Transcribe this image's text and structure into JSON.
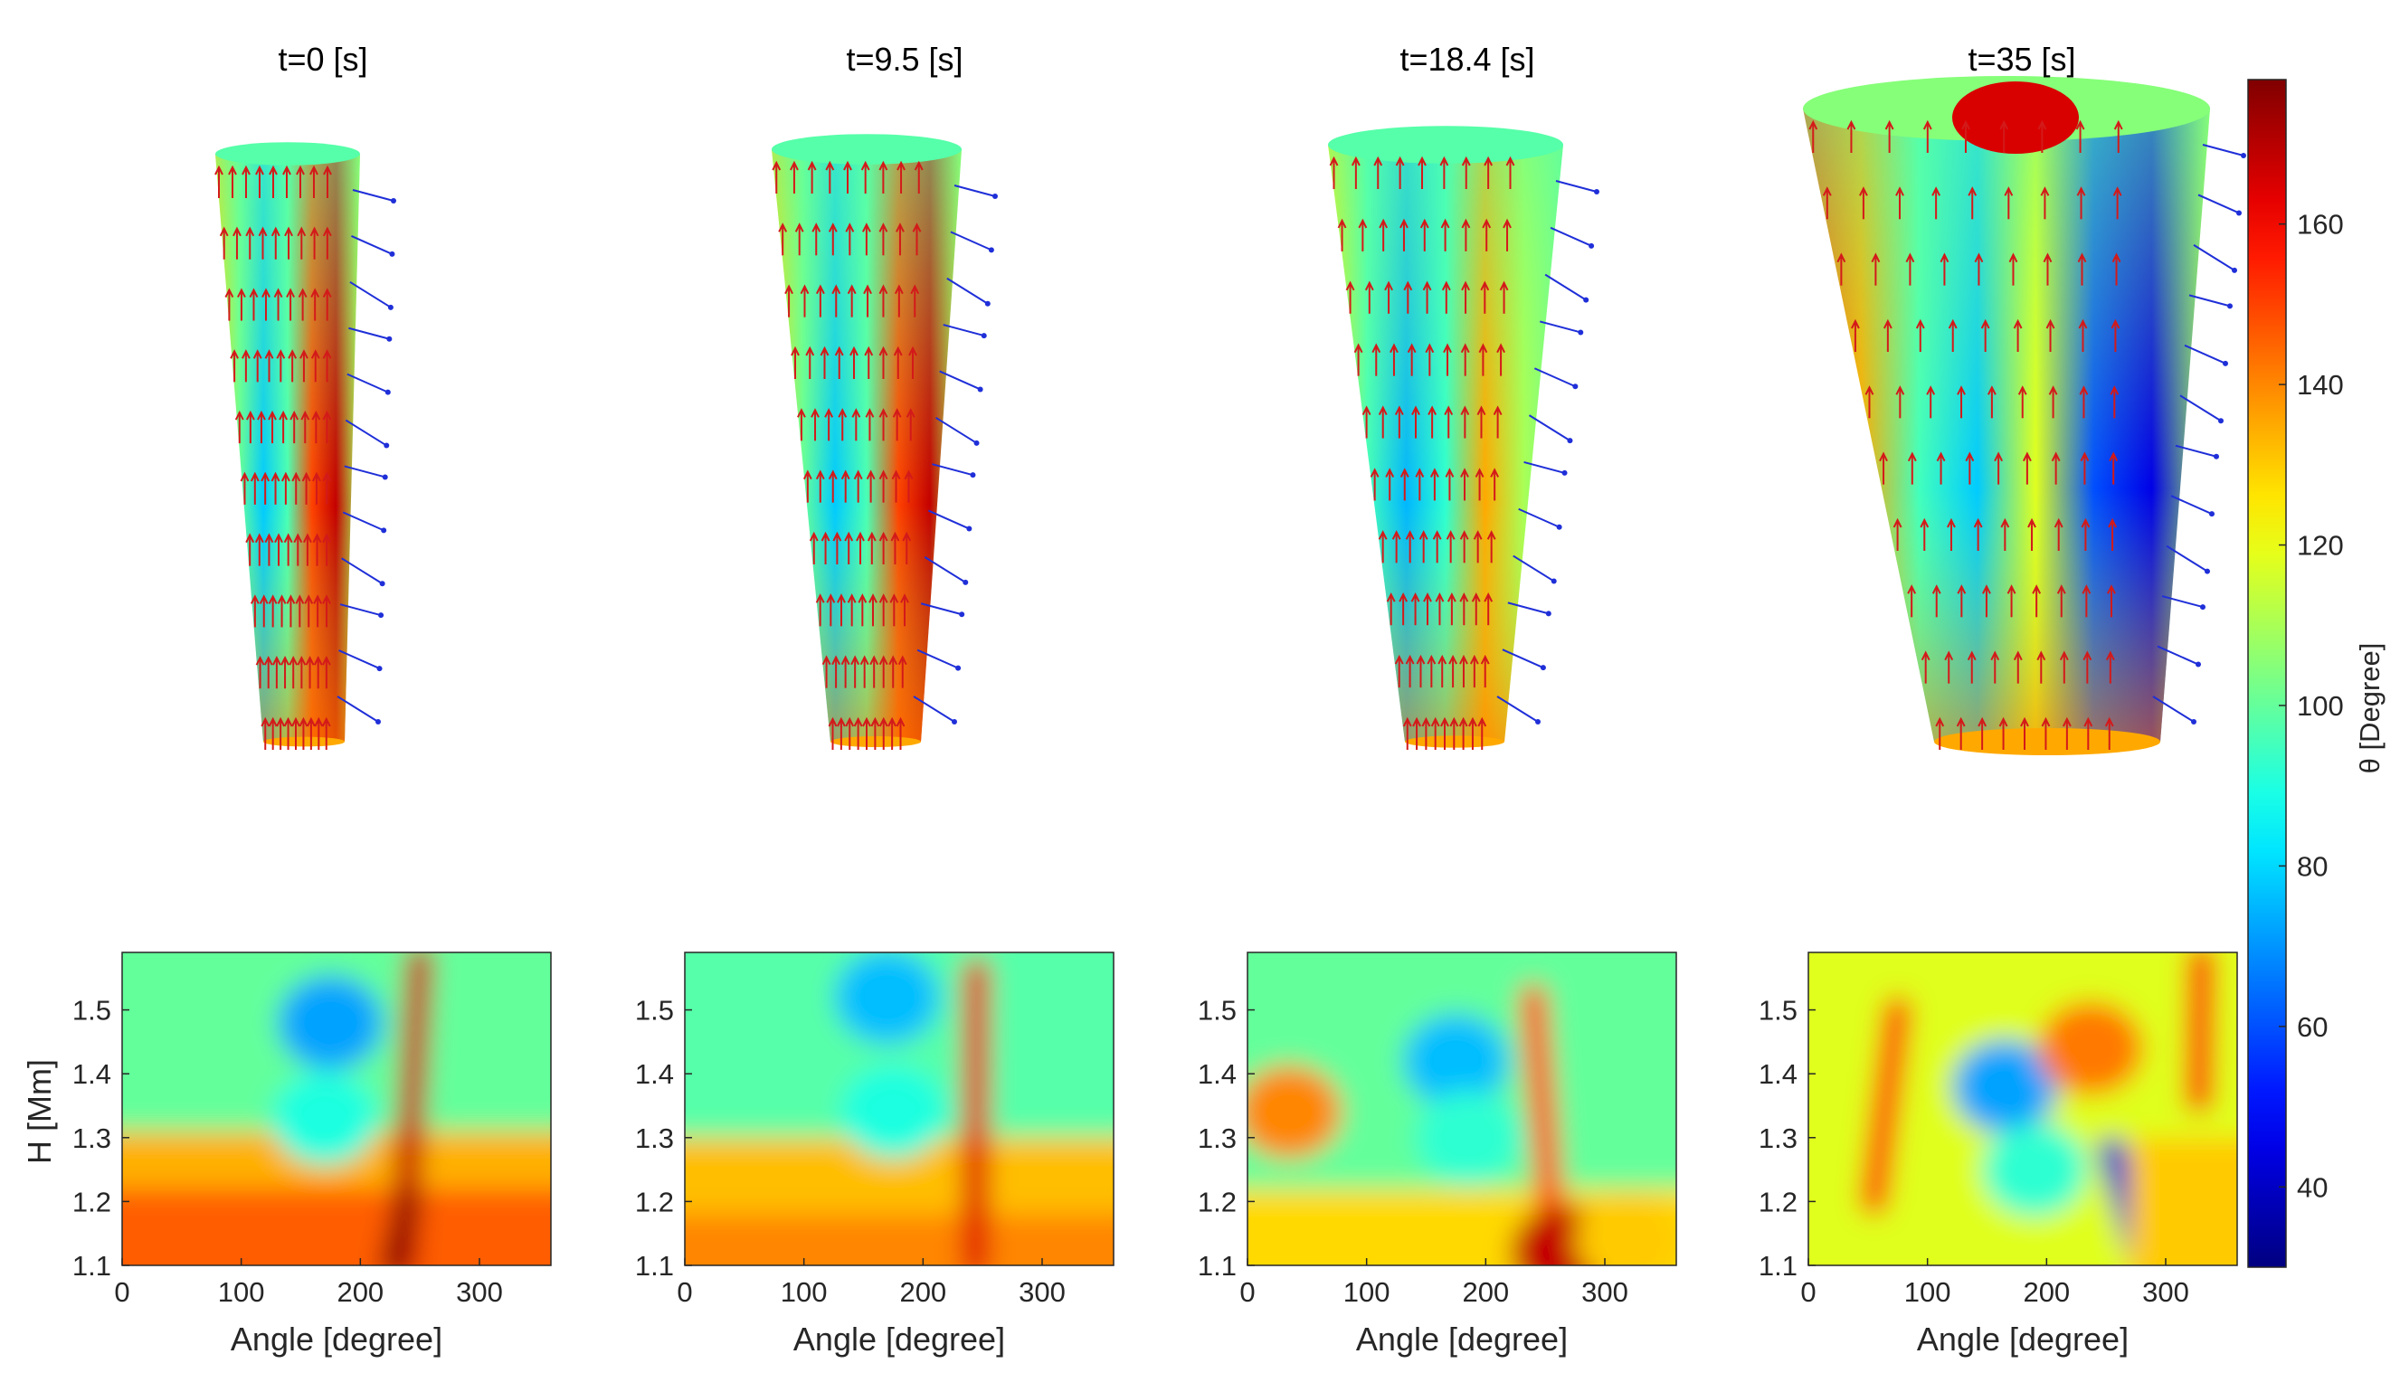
{
  "figure": {
    "colormap": "jet",
    "colorbar": {
      "label": "θ [Degree]",
      "range": [
        30,
        178
      ],
      "ticks": [
        40,
        60,
        80,
        100,
        120,
        140,
        160
      ]
    }
  },
  "chart_data": [
    {
      "type": "heatmap",
      "title": "t=0 [s]",
      "xlabel": "Angle [degree]",
      "ylabel": "H [Mm]",
      "xlim": [
        0,
        360
      ],
      "ylim": [
        1.1,
        1.59
      ],
      "xticks": [
        0,
        100,
        200,
        300
      ],
      "yticks": [
        1.1,
        1.2,
        1.3,
        1.4,
        1.5
      ],
      "color_label": "θ [Degree]",
      "features": [
        {
          "kind": "background",
          "value": 100
        },
        {
          "kind": "band",
          "x": [
            0,
            360
          ],
          "y": [
            1.1,
            1.31
          ],
          "value": 134
        },
        {
          "kind": "band",
          "x": [
            0,
            360
          ],
          "y": [
            1.1,
            1.22
          ],
          "value": 146
        },
        {
          "kind": "blob",
          "x": 175,
          "y": 1.48,
          "value": 72
        },
        {
          "kind": "blob",
          "x": 170,
          "y": 1.33,
          "value": 90
        },
        {
          "kind": "ridge",
          "x": [
            250,
            236
          ],
          "y": [
            1.58,
            1.1
          ],
          "value": 168
        },
        {
          "kind": "ridge",
          "x": [
            240,
            228
          ],
          "y": [
            1.2,
            1.1
          ],
          "value": 176
        }
      ],
      "view3d": {
        "angle_range": [
          0,
          360
        ],
        "height_range": [
          1.1,
          1.6
        ]
      }
    },
    {
      "type": "heatmap",
      "title": "t=9.5 [s]",
      "xlabel": "Angle [degree]",
      "ylabel": "",
      "xlim": [
        0,
        360
      ],
      "ylim": [
        1.1,
        1.59
      ],
      "xticks": [
        0,
        100,
        200,
        300
      ],
      "yticks": [
        1.1,
        1.2,
        1.3,
        1.4,
        1.5
      ],
      "color_label": "θ [Degree]",
      "features": [
        {
          "kind": "background",
          "value": 98
        },
        {
          "kind": "band",
          "x": [
            0,
            360
          ],
          "y": [
            1.1,
            1.3
          ],
          "value": 132
        },
        {
          "kind": "band",
          "x": [
            0,
            360
          ],
          "y": [
            1.1,
            1.18
          ],
          "value": 140
        },
        {
          "kind": "blob",
          "x": 170,
          "y": 1.52,
          "value": 76
        },
        {
          "kind": "blob",
          "x": 175,
          "y": 1.34,
          "value": 90
        },
        {
          "kind": "ridge",
          "x": [
            245,
            244
          ],
          "y": [
            1.56,
            1.1
          ],
          "value": 164
        }
      ],
      "view3d": {
        "angle_range": [
          0,
          360
        ],
        "height_range": [
          1.1,
          1.6
        ]
      }
    },
    {
      "type": "heatmap",
      "title": "t=18.4 [s]",
      "xlabel": "Angle [degree]",
      "ylabel": "",
      "xlim": [
        0,
        360
      ],
      "ylim": [
        1.1,
        1.59
      ],
      "xticks": [
        0,
        100,
        200,
        300
      ],
      "yticks": [
        1.1,
        1.2,
        1.3,
        1.4,
        1.5
      ],
      "color_label": "θ [Degree]",
      "features": [
        {
          "kind": "background",
          "value": 100
        },
        {
          "kind": "band",
          "x": [
            0,
            360
          ],
          "y": [
            1.1,
            1.22
          ],
          "value": 128
        },
        {
          "kind": "blob",
          "x": 35,
          "y": 1.34,
          "value": 140
        },
        {
          "kind": "blob",
          "x": 175,
          "y": 1.42,
          "value": 76
        },
        {
          "kind": "blob",
          "x": 185,
          "y": 1.3,
          "value": 92
        },
        {
          "kind": "ridge",
          "x": [
            240,
            255
          ],
          "y": [
            1.52,
            1.18
          ],
          "value": 150
        },
        {
          "kind": "blob",
          "x": 265,
          "y": 1.12,
          "value": 168
        },
        {
          "kind": "blob",
          "x": 320,
          "y": 1.14,
          "value": 130
        }
      ],
      "view3d": {
        "angle_range": [
          0,
          360
        ],
        "height_range": [
          1.1,
          1.6
        ]
      }
    },
    {
      "type": "heatmap",
      "title": "t=35 [s]",
      "xlabel": "Angle [degree]",
      "ylabel": "",
      "xlim": [
        0,
        360
      ],
      "ylim": [
        1.1,
        1.59
      ],
      "xticks": [
        0,
        100,
        200,
        300
      ],
      "yticks": [
        1.1,
        1.2,
        1.3,
        1.4,
        1.5
      ],
      "color_label": "θ [Degree]",
      "features": [
        {
          "kind": "background",
          "value": 118
        },
        {
          "kind": "ridge",
          "x": [
            75,
            55
          ],
          "y": [
            1.5,
            1.2
          ],
          "value": 155
        },
        {
          "kind": "blob",
          "x": 165,
          "y": 1.38,
          "value": 72
        },
        {
          "kind": "blob",
          "x": 190,
          "y": 1.25,
          "value": 92
        },
        {
          "kind": "blob",
          "x": 237,
          "y": 1.44,
          "value": 142
        },
        {
          "kind": "ridge",
          "x": [
            255,
            280
          ],
          "y": [
            1.28,
            1.11
          ],
          "value": 42
        },
        {
          "kind": "ridge",
          "x": [
            330,
            328
          ],
          "y": [
            1.58,
            1.36
          ],
          "value": 160
        },
        {
          "kind": "band",
          "x": [
            300,
            360
          ],
          "y": [
            1.1,
            1.3
          ],
          "value": 130
        }
      ],
      "view3d": {
        "angle_range": [
          0,
          360
        ],
        "height_range": [
          1.1,
          1.6
        ]
      }
    }
  ]
}
